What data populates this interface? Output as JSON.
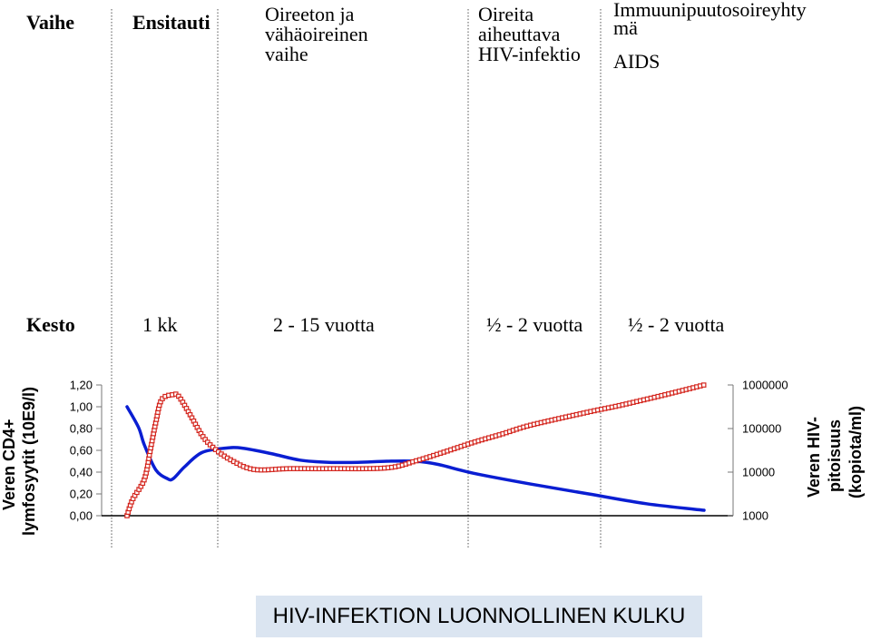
{
  "phases": {
    "header_label": "Vaihe",
    "acute": "Ensitauti",
    "asymptomatic": "Oireeton ja\nvähäoireinen\nvaihe",
    "symptomatic": "Oireita\naiheuttava\nHIV-infektio",
    "aids_top": "Immuunipuutosoireyhty\nmä",
    "aids": "AIDS"
  },
  "duration": {
    "label": "Kesto",
    "acute": "1 kk",
    "asymptomatic": "2 - 15 vuotta",
    "symptomatic": "½ - 2 vuotta",
    "aids": "½ - 2 vuotta"
  },
  "axes": {
    "left_label_line1": "Veren CD4+",
    "left_label_line2": "lymfosyytit (10E9/l)",
    "right_label_line1": "Veren HIV-",
    "right_label_line2": "pitoisuus",
    "right_label_line3": "(kopiota/ml)",
    "left_ticks": [
      "1,20",
      "1,00",
      "0,80",
      "0,60",
      "0,40",
      "0,20",
      "0,00"
    ],
    "right_ticks": [
      "1000000",
      "100000",
      "10000",
      "1000"
    ]
  },
  "caption": "HIV-INFEKTION LUONNOLLINEN KULKU",
  "colors": {
    "cd4_line": "#0a1ed2",
    "virus_line": "#d4261e",
    "caption_bg": "#dbe5f1"
  },
  "chart_data": {
    "type": "line",
    "left_axis": {
      "label": "Veren CD4+ lymfosyytit (10E9/l)",
      "ylim": [
        0,
        1.2
      ],
      "ticks": [
        1.2,
        1.0,
        0.8,
        0.6,
        0.4,
        0.2,
        0.0
      ]
    },
    "right_axis": {
      "label": "Veren HIV-pitoisuus (kopiota/ml)",
      "scale": "log",
      "ylim": [
        1000,
        1000000
      ],
      "ticks": [
        1000000,
        100000,
        10000,
        1000
      ]
    },
    "x_unit": "relative time",
    "series": [
      {
        "axis": "left",
        "style": "solid",
        "points": [
          [
            0,
            1.0
          ],
          [
            2,
            0.81
          ],
          [
            3,
            0.65
          ],
          [
            5,
            0.42
          ],
          [
            7,
            0.34
          ],
          [
            8,
            0.34
          ],
          [
            10,
            0.45
          ],
          [
            13,
            0.58
          ],
          [
            17,
            0.62
          ],
          [
            20,
            0.62
          ],
          [
            25,
            0.57
          ],
          [
            30,
            0.51
          ],
          [
            35,
            0.49
          ],
          [
            40,
            0.49
          ],
          [
            45,
            0.5
          ],
          [
            50,
            0.5
          ],
          [
            54,
            0.47
          ],
          [
            60,
            0.39
          ],
          [
            70,
            0.29
          ],
          [
            80,
            0.2
          ],
          [
            90,
            0.11
          ],
          [
            100,
            0.05
          ]
        ]
      },
      {
        "axis": "right",
        "style": "dotted-markers",
        "points": [
          [
            0,
            1000
          ],
          [
            1,
            2400
          ],
          [
            3,
            6800
          ],
          [
            4,
            30000
          ],
          [
            5,
            140000
          ],
          [
            6,
            460000
          ],
          [
            8,
            600000
          ],
          [
            9,
            540000
          ],
          [
            11,
            200000
          ],
          [
            13,
            70000
          ],
          [
            15,
            36000
          ],
          [
            18,
            19000
          ],
          [
            22,
            11500
          ],
          [
            28,
            12000
          ],
          [
            35,
            12000
          ],
          [
            45,
            12500
          ],
          [
            50,
            18000
          ],
          [
            55,
            29000
          ],
          [
            60,
            48000
          ],
          [
            65,
            75000
          ],
          [
            70,
            120000
          ],
          [
            80,
            240000
          ],
          [
            85,
            330000
          ],
          [
            90,
            470000
          ],
          [
            95,
            680000
          ],
          [
            100,
            1000000
          ]
        ]
      }
    ]
  }
}
